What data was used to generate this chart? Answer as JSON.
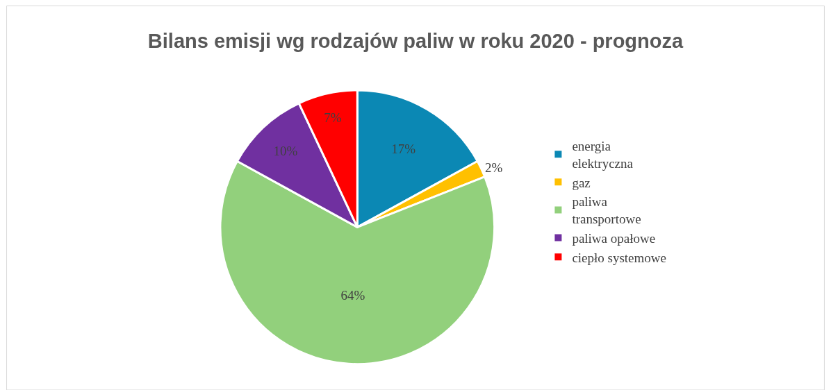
{
  "chart_data": {
    "type": "pie",
    "title": "Bilans emisji wg rodzajów paliw w roku 2020 - prognoza",
    "categories": [
      "energia elektryczna",
      "gaz",
      "paliwa transportowe",
      "paliwa opałowe",
      "ciepło systemowe"
    ],
    "values": [
      17,
      2,
      64,
      10,
      7
    ],
    "colors": [
      "#0b88b4",
      "#ffc000",
      "#92d07c",
      "#7030a0",
      "#ff0000"
    ],
    "value_labels": [
      "17%",
      "2%",
      "64%",
      "10%",
      "7%"
    ],
    "legend": "right"
  }
}
